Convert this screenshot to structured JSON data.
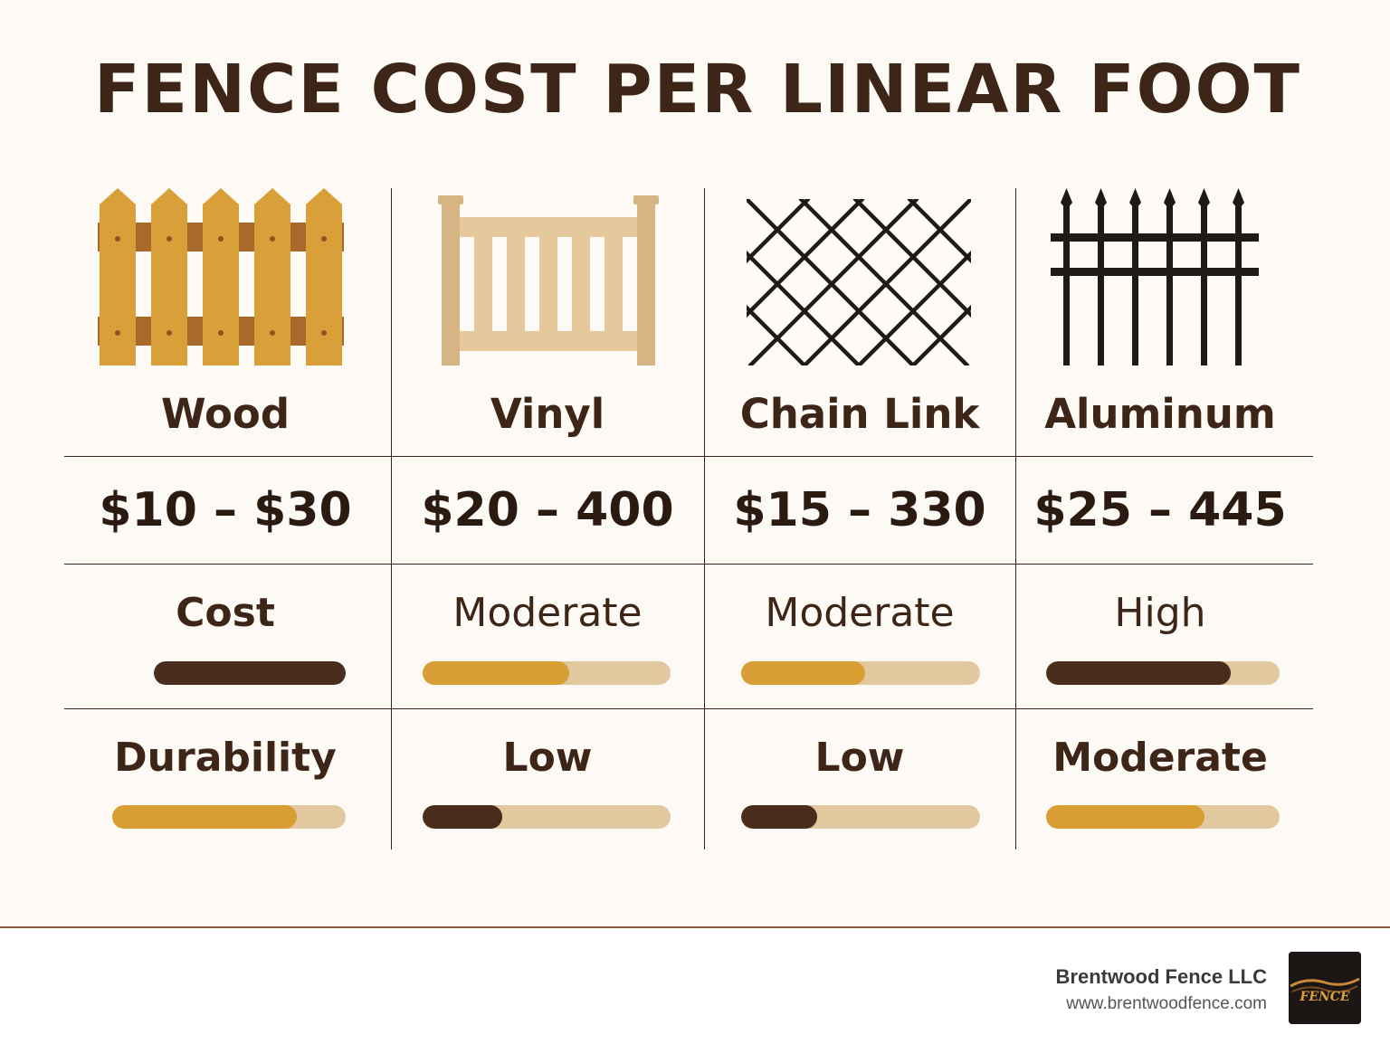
{
  "title": "FENCE COST PER LINEAR FOOT",
  "colors": {
    "dark_brown": "#4a2c1c",
    "gold": "#d89d33",
    "track": "#e2c89f",
    "wood": "#d9a03a",
    "vinyl": "#e5c99c",
    "metal": "#1e1a18"
  },
  "columns": [
    {
      "icon": "wood-fence-icon",
      "name": "Wood",
      "price": "$10 – $30",
      "cost_label": "Cost",
      "cost_level": 1.0,
      "cost_color": "#4a2c1c",
      "durability_label": "Durability",
      "durability_level": 0.79,
      "durability_color": "#d89d33"
    },
    {
      "icon": "vinyl-fence-icon",
      "name": "Vinyl",
      "price": "$20 – 400",
      "cost_label": "Moderate",
      "cost_level": 0.59,
      "cost_color": "#d89d33",
      "durability_label": "Low",
      "durability_level": 0.32,
      "durability_color": "#4a2c1c"
    },
    {
      "icon": "chain-link-fence-icon",
      "name": "Chain Link",
      "price": "$15 – 330",
      "cost_label": "Moderate",
      "cost_level": 0.52,
      "cost_color": "#d89d33",
      "durability_label": "Low",
      "durability_level": 0.32,
      "durability_color": "#4a2c1c"
    },
    {
      "icon": "aluminum-fence-icon",
      "name": "Aluminum",
      "price": "$25 – 445",
      "cost_label": "High",
      "cost_level": 0.79,
      "cost_color": "#4a2c1c",
      "durability_label": "Moderate",
      "durability_level": 0.68,
      "durability_color": "#d89d33"
    }
  ],
  "footer": {
    "company": "Brentwood Fence LLC",
    "website": "www.brentwoodfence.com",
    "logo_icon": "brentwood-fence-logo",
    "logo_text": "FENCE"
  }
}
